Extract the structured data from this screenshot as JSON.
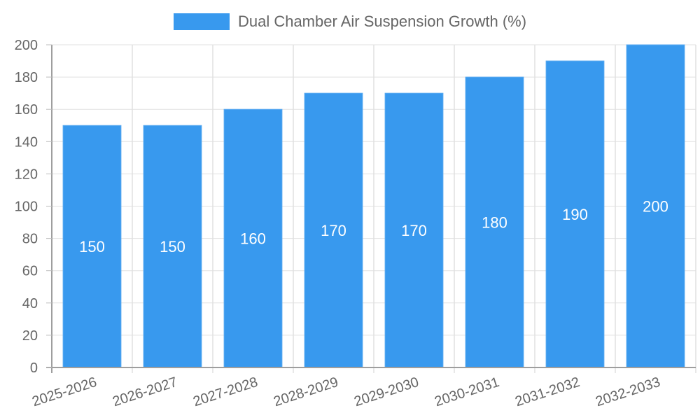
{
  "chart_data": {
    "type": "bar",
    "title": "",
    "xlabel": "",
    "ylabel": "",
    "ylim": [
      0,
      200
    ],
    "yticks": [
      0,
      20,
      40,
      60,
      80,
      100,
      120,
      140,
      160,
      180,
      200
    ],
    "grid": true,
    "legend_position": "top",
    "categories": [
      "2025-2026",
      "2026-2027",
      "2027-2028",
      "2028-2029",
      "2029-2030",
      "2030-2031",
      "2031-2032",
      "2032-2033"
    ],
    "series": [
      {
        "name": "Dual Chamber Air Suspension Growth (%)",
        "values": [
          150,
          150,
          160,
          170,
          170,
          180,
          190,
          200
        ],
        "color": "#3899ee"
      }
    ],
    "data_labels": true
  },
  "legend": {
    "label": "Dual Chamber Air Suspension Growth (%)",
    "color": "#3899ee"
  }
}
